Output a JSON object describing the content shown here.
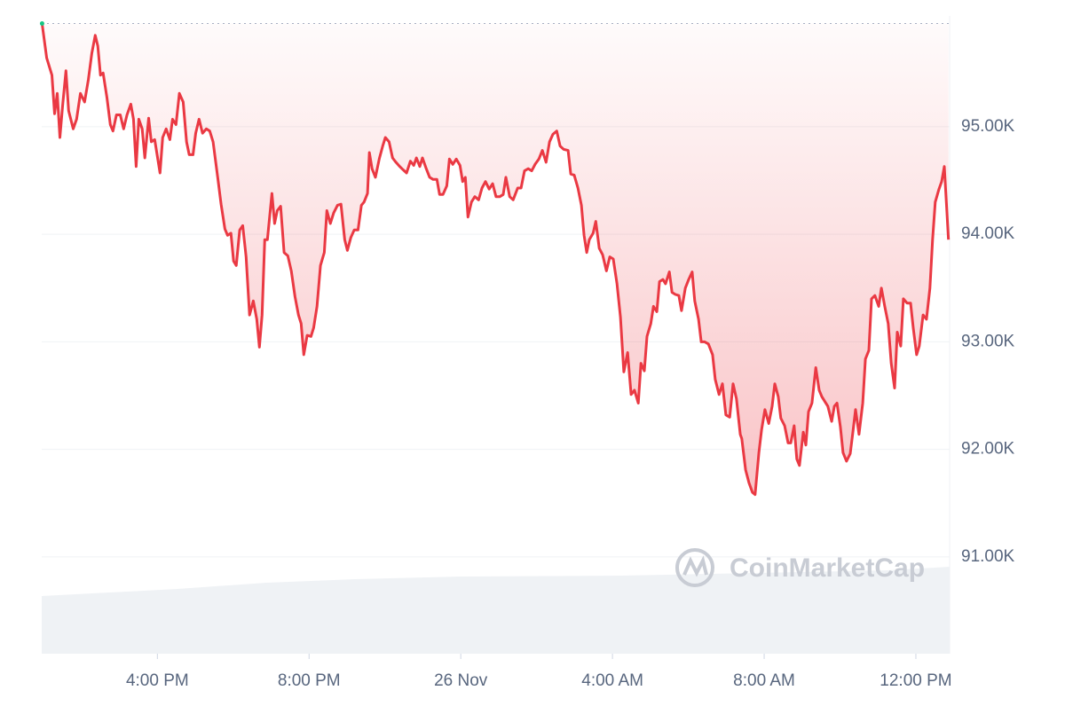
{
  "chart_data": {
    "type": "line",
    "color": "#ea3943",
    "watermark": "CoinMarketCap",
    "x": [
      12.96,
      13.08,
      13.22,
      13.29,
      13.36,
      13.43,
      13.5,
      13.59,
      13.66,
      13.78,
      13.87,
      13.97,
      14.08,
      14.18,
      14.27,
      14.36,
      14.43,
      14.5,
      14.57,
      14.67,
      14.76,
      14.83,
      14.92,
      15.02,
      15.11,
      15.2,
      15.3,
      15.37,
      15.44,
      15.51,
      15.6,
      15.67,
      15.77,
      15.84,
      15.93,
      16.07,
      16.14,
      16.23,
      16.33,
      16.4,
      16.49,
      16.58,
      16.68,
      16.77,
      16.84,
      16.94,
      17.01,
      17.1,
      17.19,
      17.29,
      17.38,
      17.47,
      17.59,
      17.68,
      17.78,
      17.85,
      17.94,
      18.01,
      18.08,
      18.17,
      18.25,
      18.34,
      18.43,
      18.53,
      18.62,
      18.69,
      18.76,
      18.83,
      18.9,
      19.02,
      19.09,
      19.16,
      19.25,
      19.34,
      19.44,
      19.53,
      19.63,
      19.72,
      19.79,
      19.86,
      19.95,
      20.05,
      20.12,
      20.21,
      20.3,
      20.4,
      20.47,
      20.56,
      20.65,
      20.75,
      20.84,
      20.94,
      21.01,
      21.1,
      21.19,
      21.29,
      21.38,
      21.45,
      21.54,
      21.59,
      21.66,
      21.75,
      21.85,
      21.94,
      22.01,
      22.11,
      22.2,
      22.29,
      22.39,
      22.48,
      22.57,
      22.67,
      22.76,
      22.83,
      22.92,
      22.99,
      23.09,
      23.18,
      23.27,
      23.37,
      23.44,
      23.53,
      23.63,
      23.7,
      23.79,
      23.88,
      23.98,
      24.05,
      24.12,
      24.19,
      24.28,
      24.37,
      24.47,
      24.56,
      24.65,
      24.75,
      24.84,
      24.93,
      25.03,
      25.12,
      25.19,
      25.29,
      25.38,
      25.5,
      25.59,
      25.68,
      25.78,
      25.87,
      25.96,
      26.06,
      26.15,
      26.25,
      26.34,
      26.43,
      26.53,
      26.62,
      26.71,
      26.83,
      26.9,
      26.99,
      27.09,
      27.18,
      27.25,
      27.32,
      27.39,
      27.49,
      27.56,
      27.65,
      27.74,
      27.84,
      27.93,
      28.02,
      28.12,
      28.21,
      28.3,
      28.4,
      28.49,
      28.58,
      28.68,
      28.75,
      28.84,
      28.91,
      29.01,
      29.08,
      29.17,
      29.24,
      29.33,
      29.4,
      29.5,
      29.57,
      29.66,
      29.75,
      29.82,
      29.92,
      30.01,
      30.1,
      30.17,
      30.27,
      30.34,
      30.43,
      30.53,
      30.64,
      30.71,
      30.81,
      30.9,
      30.99,
      31.09,
      31.18,
      31.27,
      31.37,
      31.41,
      31.51,
      31.6,
      31.69,
      31.76,
      31.86,
      31.93,
      32.02,
      32.12,
      32.21,
      32.28,
      32.37,
      32.44,
      32.54,
      32.63,
      32.7,
      32.79,
      32.86,
      32.93,
      33.03,
      33.1,
      33.17,
      33.26,
      33.36,
      33.45,
      33.52,
      33.61,
      33.68,
      33.78,
      33.85,
      33.92,
      34.01,
      34.08,
      34.17,
      34.27,
      34.34,
      34.41,
      34.5,
      34.6,
      34.67,
      34.76,
      34.83,
      34.92,
      35.02,
      35.09,
      35.18,
      35.27,
      35.35,
      35.44,
      35.51,
      35.6,
      35.67,
      35.77,
      35.86,
      35.93,
      36.02,
      36.09,
      36.19,
      36.28,
      36.37,
      36.44,
      36.51,
      36.61,
      36.68,
      36.75,
      36.82,
      36.86
    ],
    "values": [
      95960,
      95640,
      95480,
      95120,
      95310,
      94900,
      95190,
      95520,
      95150,
      94980,
      95070,
      95310,
      95230,
      95440,
      95680,
      95850,
      95750,
      95480,
      95500,
      95270,
      95020,
      94960,
      95110,
      95110,
      94980,
      95110,
      95210,
      95070,
      94630,
      95070,
      94980,
      94710,
      95080,
      94860,
      94880,
      94570,
      94900,
      94980,
      94880,
      95070,
      95020,
      95310,
      95230,
      94860,
      94740,
      94740,
      94940,
      95070,
      94940,
      94980,
      94960,
      94860,
      94530,
      94280,
      94050,
      93990,
      94010,
      93750,
      93710,
      94040,
      94080,
      93790,
      93250,
      93380,
      93210,
      92950,
      93250,
      93950,
      93950,
      94380,
      94100,
      94220,
      94260,
      93830,
      93800,
      93660,
      93420,
      93250,
      93170,
      92880,
      93060,
      93050,
      93130,
      93330,
      93710,
      93830,
      94220,
      94100,
      94200,
      94270,
      94280,
      93950,
      93850,
      93970,
      94040,
      94040,
      94270,
      94300,
      94380,
      94760,
      94610,
      94530,
      94700,
      94820,
      94900,
      94860,
      94710,
      94670,
      94630,
      94600,
      94570,
      94680,
      94640,
      94710,
      94630,
      94710,
      94610,
      94530,
      94510,
      94510,
      94370,
      94370,
      94450,
      94700,
      94650,
      94700,
      94640,
      94490,
      94530,
      94160,
      94300,
      94350,
      94320,
      94430,
      94490,
      94420,
      94470,
      94350,
      94350,
      94370,
      94530,
      94350,
      94320,
      94430,
      94430,
      94590,
      94610,
      94590,
      94650,
      94700,
      94780,
      94670,
      94860,
      94930,
      94960,
      94820,
      94790,
      94780,
      94560,
      94550,
      94430,
      94270,
      93990,
      93830,
      93950,
      94010,
      94120,
      93870,
      93810,
      93660,
      93790,
      93770,
      93540,
      93230,
      92720,
      92900,
      92510,
      92550,
      92430,
      92800,
      92730,
      93050,
      93170,
      93330,
      93280,
      93560,
      93580,
      93540,
      93650,
      93460,
      93440,
      93430,
      93290,
      93500,
      93580,
      93650,
      93380,
      93210,
      93000,
      93000,
      92980,
      92880,
      92650,
      92510,
      92610,
      92320,
      92300,
      92610,
      92470,
      92140,
      92100,
      91810,
      91690,
      91600,
      91580,
      91970,
      92180,
      92370,
      92240,
      92400,
      92610,
      92490,
      92290,
      92220,
      92060,
      92060,
      92220,
      91910,
      91850,
      92160,
      92040,
      92350,
      92430,
      92760,
      92550,
      92490,
      92440,
      92400,
      92260,
      92400,
      92430,
      92210,
      91970,
      91890,
      91960,
      92160,
      92370,
      92140,
      92430,
      92840,
      92920,
      93400,
      93430,
      93330,
      93500,
      93330,
      93170,
      92800,
      92570,
      93090,
      92960,
      93400,
      93360,
      93360,
      93130,
      92880,
      92960,
      93250,
      93210,
      93500,
      93950,
      94300,
      94420,
      94490,
      94630,
      94200,
      93950
    ],
    "xlim": [
      12.95,
      36.89
    ],
    "ylim": [
      90100,
      96030
    ],
    "xticks": [
      {
        "value": 16,
        "label": "4:00 PM"
      },
      {
        "value": 20,
        "label": "8:00 PM"
      },
      {
        "value": 24,
        "label": "26 Nov"
      },
      {
        "value": 28,
        "label": "4:00 AM"
      },
      {
        "value": 32,
        "label": "8:00 AM"
      },
      {
        "value": 36,
        "label": "12:00 PM"
      }
    ],
    "yticks": [
      {
        "value": 91000,
        "label": "91.00K"
      },
      {
        "value": 92000,
        "label": "92.00K"
      },
      {
        "value": 93000,
        "label": "93.00K"
      },
      {
        "value": 94000,
        "label": "94.00K"
      },
      {
        "value": 95000,
        "label": "95.00K"
      }
    ],
    "grid": true
  }
}
